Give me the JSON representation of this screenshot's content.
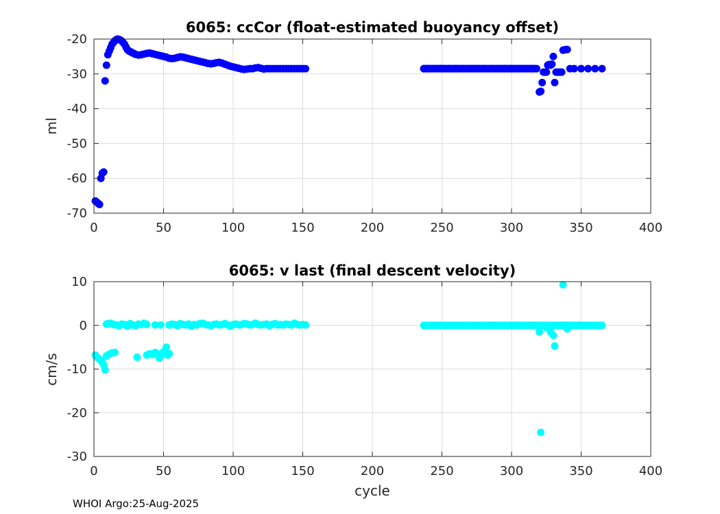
{
  "footer": "WHOI Argo:25-Aug-2025",
  "colors": {
    "ccCor": "#0000ff",
    "vlast": "#00ffff"
  },
  "chart_data": [
    {
      "type": "scatter",
      "title": "6065: ccCor (float-estimated buoyancy offset)",
      "xlabel": "",
      "ylabel": "ml",
      "xlim": [
        0,
        400
      ],
      "ylim": [
        -70,
        -20
      ],
      "xticks": [
        0,
        50,
        100,
        150,
        200,
        250,
        300,
        350,
        400
      ],
      "yticks": [
        -70,
        -60,
        -50,
        -40,
        -30,
        -20
      ],
      "grid": true,
      "series": [
        {
          "color": "#0000ff",
          "x": [
            1,
            2,
            3,
            4,
            5,
            6,
            7,
            8,
            9,
            10,
            11,
            12,
            13,
            14,
            15,
            16,
            17,
            18,
            19,
            20,
            21,
            22,
            23,
            24,
            25,
            26,
            27,
            28,
            29,
            30,
            32,
            34,
            36,
            38,
            40,
            42,
            44,
            46,
            48,
            50,
            52,
            54,
            56,
            58,
            60,
            62,
            64,
            66,
            68,
            70,
            72,
            74,
            76,
            78,
            80,
            82,
            84,
            86,
            88,
            90,
            92,
            94,
            96,
            98,
            100,
            102,
            104,
            106,
            108,
            110,
            112,
            114,
            116,
            118,
            120,
            122,
            124,
            126,
            128,
            130,
            132,
            134,
            136,
            138,
            140,
            142,
            144,
            146,
            148,
            150,
            152,
            237,
            240,
            245,
            250,
            255,
            260,
            265,
            270,
            275,
            280,
            285,
            290,
            295,
            300,
            305,
            310,
            315,
            318,
            320,
            321,
            322,
            323,
            324,
            325,
            326,
            327,
            328,
            329,
            330,
            331,
            332,
            333,
            334,
            335,
            336,
            337,
            338,
            339,
            340,
            342,
            345,
            350,
            355,
            360,
            365
          ],
          "y": [
            -66.5,
            -66.8,
            -67.2,
            -67.5,
            -60,
            -58.5,
            -58.2,
            -32,
            -27.5,
            -24.5,
            -23.5,
            -22.5,
            -21.5,
            -21,
            -20.5,
            -20.2,
            -20,
            -20.1,
            -20.3,
            -20.6,
            -21,
            -21.5,
            -22.3,
            -23,
            -23.4,
            -23.6,
            -23.8,
            -24,
            -24.2,
            -24.4,
            -24.6,
            -24.5,
            -24.3,
            -24.1,
            -24,
            -24.2,
            -24.4,
            -24.6,
            -24.8,
            -25,
            -25.2,
            -25.5,
            -25.6,
            -25.5,
            -25.3,
            -25.1,
            -25.2,
            -25.4,
            -25.6,
            -25.8,
            -26,
            -26.2,
            -26.4,
            -26.6,
            -26.8,
            -27,
            -27.1,
            -27,
            -26.8,
            -26.7,
            -26.9,
            -27.2,
            -27.5,
            -27.8,
            -28,
            -28.2,
            -28.4,
            -28.6,
            -28.7,
            -28.6,
            -28.5,
            -28.5,
            -28.3,
            -28.2,
            -28.4,
            -28.6,
            -28.5,
            -28.5,
            -28.5,
            -28.5,
            -28.5,
            -28.5,
            -28.5,
            -28.5,
            -28.5,
            -28.5,
            -28.5,
            -28.5,
            -28.5,
            -28.5,
            -28.5,
            -28.5,
            -28.5,
            -28.5,
            -28.5,
            -28.5,
            -28.5,
            -28.5,
            -28.5,
            -28.5,
            -28.5,
            -28.5,
            -28.5,
            -28.5,
            -28.5,
            -28.5,
            -28.5,
            -28.5,
            -28.5,
            -35.2,
            -35,
            -32.5,
            -29.5,
            -29.5,
            -29.5,
            -27.5,
            -27.3,
            -27.5,
            -27.2,
            -25,
            -32.5,
            -29.5,
            -29.5,
            -29.5,
            -29.5,
            -29.5,
            -23.2,
            -23.1,
            -23,
            -23,
            -28.5,
            -28.5,
            -28.5,
            -28.5,
            -28.5,
            -28.5
          ]
        }
      ]
    },
    {
      "type": "scatter",
      "title": "6065: v last (final descent velocity)",
      "xlabel": "cycle",
      "ylabel": "cm/s",
      "xlim": [
        0,
        400
      ],
      "ylim": [
        -30,
        10
      ],
      "xticks": [
        0,
        50,
        100,
        150,
        200,
        250,
        300,
        350,
        400
      ],
      "yticks": [
        -30,
        -20,
        -10,
        0,
        10
      ],
      "grid": true,
      "series": [
        {
          "color": "#00ffff",
          "x": [
            1,
            2,
            3,
            4,
            5,
            6,
            7,
            8,
            9,
            10,
            12,
            14,
            16,
            18,
            20,
            22,
            24,
            26,
            28,
            30,
            32,
            34,
            36,
            38,
            44,
            48,
            54,
            56,
            58,
            60,
            62,
            64,
            66,
            68,
            70,
            72,
            74,
            76,
            78,
            80,
            82,
            84,
            86,
            88,
            90,
            92,
            94,
            96,
            98,
            100,
            102,
            104,
            106,
            108,
            110,
            112,
            114,
            116,
            118,
            120,
            122,
            124,
            126,
            128,
            130,
            132,
            134,
            136,
            138,
            140,
            142,
            144,
            146,
            148,
            150,
            152,
            9,
            11,
            13,
            15,
            31,
            38,
            40,
            42,
            44,
            46,
            47,
            48,
            50,
            52,
            53,
            54,
            237,
            245,
            255,
            265,
            275,
            285,
            295,
            305,
            315,
            320,
            321,
            325,
            328,
            330,
            331,
            333,
            337,
            338,
            340,
            345,
            350,
            355,
            360,
            365
          ],
          "y": [
            -6.8,
            -7.2,
            -7.5,
            -7.8,
            -8,
            -8.5,
            -9,
            -10.2,
            0.3,
            0.4,
            0.5,
            0.2,
            0.1,
            -0.1,
            0.3,
            0.2,
            -0.2,
            0.4,
            0.1,
            -0.1,
            0.3,
            0.2,
            0.5,
            0.2,
            0.1,
            0.1,
            0.1,
            0.3,
            0.2,
            -0.1,
            0.4,
            0.2,
            0.1,
            0.3,
            -0.2,
            0.2,
            0.1,
            0.4,
            0.5,
            0.2,
            0.1,
            -0.1,
            0.2,
            0.3,
            0.1,
            0.2,
            0.4,
            0.1,
            -0.2,
            0.2,
            0.3,
            0.1,
            0.2,
            0.4,
            0.3,
            0.1,
            0.2,
            0.5,
            0.2,
            0.1,
            0.2,
            0.3,
            -0.1,
            0.2,
            0.4,
            0.1,
            0.2,
            0.1,
            0.3,
            0.2,
            0.1,
            0.5,
            0.2,
            0.1,
            0.2,
            0.1,
            -7,
            -6.6,
            -6.3,
            -6.2,
            -7.3,
            -6.8,
            -6.5,
            -6.7,
            -6.2,
            -6.5,
            -7.5,
            -7,
            -6,
            -5,
            -6.8,
            -6.5,
            0,
            0,
            0,
            0,
            0,
            0,
            0,
            0,
            0,
            -1.5,
            -24.5,
            -0.5,
            -1.5,
            -2.3,
            -4.7,
            0,
            9.3,
            0,
            -0.8,
            0,
            0,
            0,
            0,
            0
          ]
        }
      ]
    }
  ]
}
